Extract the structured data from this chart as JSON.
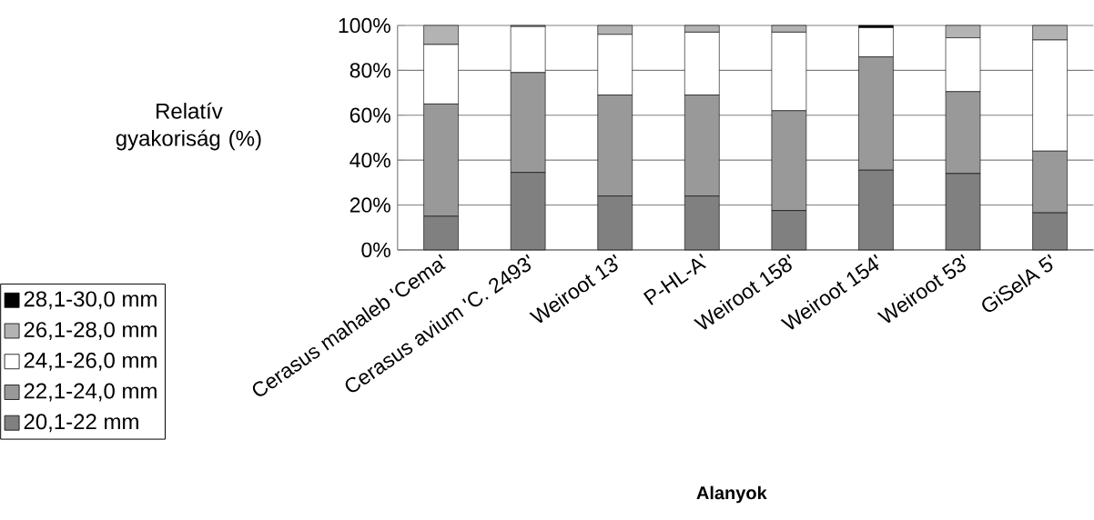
{
  "chart_data": {
    "type": "bar",
    "stacked": true,
    "categories": [
      "Cerasus mahaleb 'Cema'",
      "Cerasus avium 'C. 2493'",
      "Weiroot 13'",
      "P-HL-A'",
      "Weiroot 158'",
      "Weiroot 154'",
      "Weiroot 53'",
      "GiSelA 5'"
    ],
    "series": [
      {
        "name": "20,1-22 mm",
        "color": "#808080",
        "values": [
          15,
          34.5,
          24,
          24,
          17.5,
          35.5,
          34,
          16.5
        ]
      },
      {
        "name": "22,1-24,0 mm",
        "color": "#999999",
        "values": [
          50,
          44.5,
          45,
          45,
          44.5,
          50.5,
          36.5,
          27.5
        ]
      },
      {
        "name": "24,1-26,0 mm",
        "color": "#ffffff",
        "values": [
          26.5,
          20.5,
          27,
          28,
          35,
          13,
          24,
          49.5
        ]
      },
      {
        "name": "26,1-28,0 mm",
        "color": "#b3b3b3",
        "values": [
          8.5,
          0.5,
          4,
          3,
          3,
          0,
          5.5,
          6.5
        ]
      },
      {
        "name": "28,1-30,0 mm",
        "color": "#000000",
        "values": [
          0,
          0,
          0,
          0,
          0,
          1,
          0,
          0
        ]
      }
    ],
    "ylim": [
      0,
      100
    ],
    "yticks": [
      {
        "value": 0,
        "label": "0%"
      },
      {
        "value": 20,
        "label": "20%"
      },
      {
        "value": 40,
        "label": "40%"
      },
      {
        "value": 60,
        "label": "60%"
      },
      {
        "value": 80,
        "label": "80%"
      },
      {
        "value": 100,
        "label": "100%"
      }
    ],
    "grid": "y",
    "legend": "left",
    "ylabel": "Relatív gyakoriság (%)",
    "xlabel": "Alanyok"
  }
}
